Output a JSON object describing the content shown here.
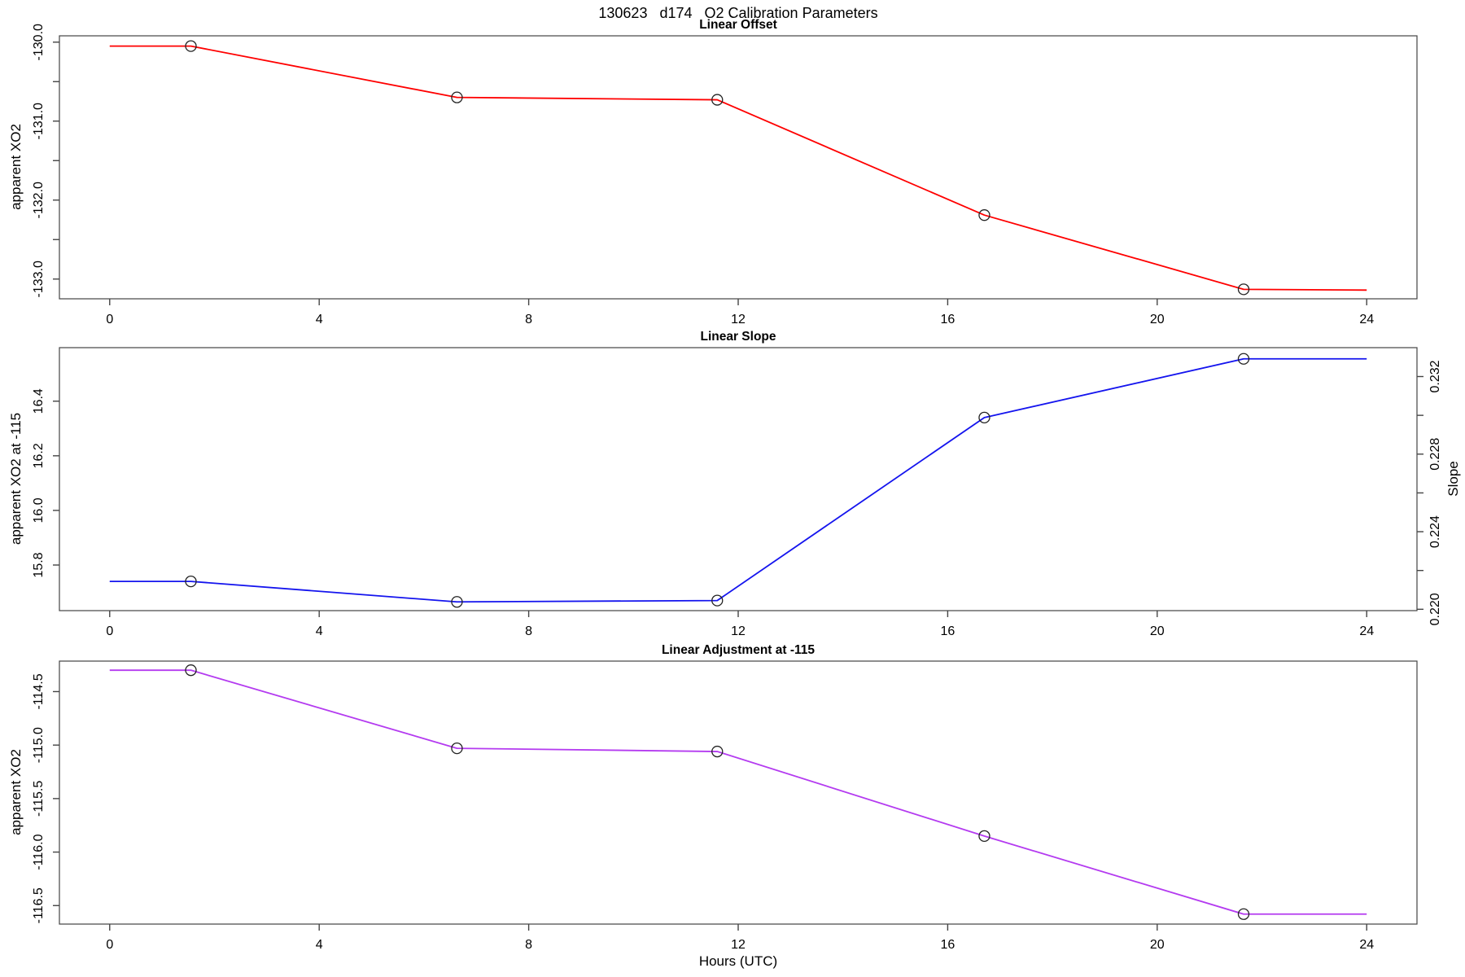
{
  "header": {
    "title": "130623   d174   O2 Calibration Parameters"
  },
  "chart_data": [
    {
      "type": "line",
      "title": "Linear Offset",
      "ylabel": "apparent XO2",
      "xlabel": "",
      "xlim": [
        -0.96,
        24.96
      ],
      "ylim": [
        -133.25,
        -129.92
      ],
      "x_ticks": [
        0,
        4,
        8,
        12,
        16,
        20,
        24
      ],
      "x_tick_labels": [
        "0",
        "4",
        "8",
        "12",
        "16",
        "20",
        "24"
      ],
      "y_ticks": [
        -130.0,
        -130.5,
        -131.0,
        -131.5,
        -132.0,
        -132.5,
        -133.0
      ],
      "y_tick_labels": [
        "-130.0",
        "",
        "-131.0",
        "",
        "-132.0",
        "",
        "-133.0"
      ],
      "grid": false,
      "legend": "none",
      "series": [
        {
          "name": "linear-offset",
          "color": "#FF0000",
          "x": [
            0,
            1.55,
            6.63,
            11.6,
            16.7,
            21.65,
            24
          ],
          "y": [
            -130.05,
            -130.05,
            -130.7,
            -130.73,
            -132.19,
            -133.13,
            -133.14
          ],
          "marker": "open-circle",
          "marker_indices": [
            1,
            2,
            3,
            4,
            5
          ]
        }
      ]
    },
    {
      "type": "line",
      "title": "Linear Slope",
      "ylabel": "apparent XO2 at -115",
      "ylabel_right": "Slope",
      "xlabel": "",
      "xlim": [
        -0.96,
        24.96
      ],
      "ylim": [
        15.633,
        16.596
      ],
      "right_ylim": [
        0.21993,
        0.23349
      ],
      "x_ticks": [
        0,
        4,
        8,
        12,
        16,
        20,
        24
      ],
      "x_tick_labels": [
        "0",
        "4",
        "8",
        "12",
        "16",
        "20",
        "24"
      ],
      "y_ticks": [
        15.8,
        16.0,
        16.2,
        16.4
      ],
      "y_tick_labels": [
        "15.8",
        "16.0",
        "16.2",
        "16.4"
      ],
      "right_ticks": [
        0.22,
        0.222,
        0.224,
        0.226,
        0.228,
        0.23,
        0.232
      ],
      "right_tick_labels": [
        "0.220",
        "",
        "0.224",
        "",
        "0.228",
        "",
        "0.232"
      ],
      "grid": false,
      "legend": "none",
      "series": [
        {
          "name": "linear-slope",
          "color": "#1414EE",
          "x": [
            0,
            1.55,
            6.63,
            11.6,
            16.7,
            21.65,
            24
          ],
          "y": [
            15.74,
            15.74,
            15.665,
            15.67,
            16.34,
            16.555,
            16.555
          ],
          "y_right_slope": [
            0.2215,
            0.2215,
            0.2204,
            0.2205,
            0.2299,
            0.2329,
            0.2329
          ],
          "marker": "open-circle",
          "marker_indices": [
            1,
            2,
            3,
            4,
            5
          ]
        }
      ]
    },
    {
      "type": "line",
      "title": "Linear Adjustment at -115",
      "ylabel": "apparent XO2",
      "xlabel": "Hours (UTC)",
      "xlim": [
        -0.96,
        24.96
      ],
      "ylim": [
        -116.673,
        -114.215
      ],
      "x_ticks": [
        0,
        4,
        8,
        12,
        16,
        20,
        24
      ],
      "x_tick_labels": [
        "0",
        "4",
        "8",
        "12",
        "16",
        "20",
        "24"
      ],
      "y_ticks": [
        -114.5,
        -115.0,
        -115.5,
        -116.0,
        -116.5
      ],
      "y_tick_labels": [
        "-114.5",
        "-115.0",
        "-115.5",
        "-116.0",
        "-116.5"
      ],
      "grid": false,
      "legend": "none",
      "series": [
        {
          "name": "linear-adjustment",
          "color": "#B43BF0",
          "x": [
            0,
            1.55,
            6.63,
            11.6,
            16.7,
            21.65,
            24
          ],
          "y": [
            -114.3,
            -114.3,
            -115.03,
            -115.06,
            -115.85,
            -116.58,
            -116.58
          ],
          "marker": "open-circle",
          "marker_indices": [
            1,
            2,
            3,
            4,
            5
          ]
        }
      ]
    }
  ]
}
